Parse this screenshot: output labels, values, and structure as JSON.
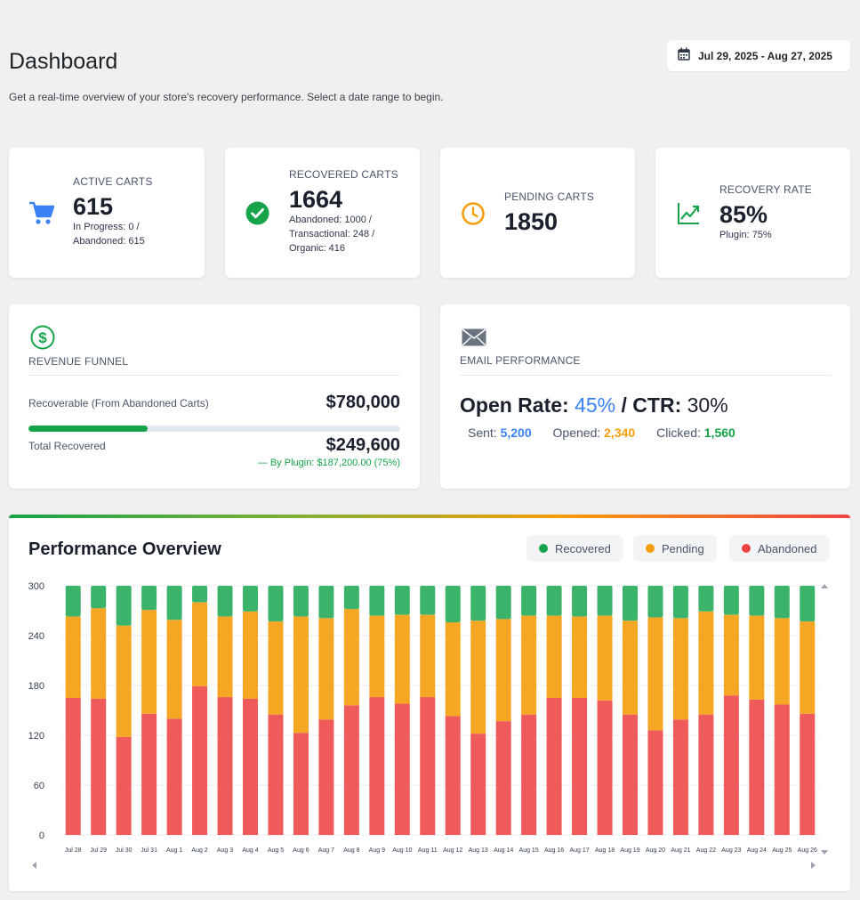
{
  "header": {
    "title": "Dashboard",
    "subtitle": "Get a real-time overview of your store's recovery performance. Select a date range to begin.",
    "date_range": "Jul 29, 2025 - Aug 27, 2025"
  },
  "stats": {
    "active": {
      "label": "ACTIVE CARTS",
      "value": "615",
      "sub1": "In Progress: 0 /",
      "sub2": "Abandoned: 615",
      "icon": "cart-icon",
      "color": "#3b82f6"
    },
    "recovered": {
      "label": "RECOVERED CARTS",
      "value": "1664",
      "sub1": "Abandoned: 1000 /",
      "sub2": "Transactional: 248 /",
      "sub3": "Organic: 416",
      "icon": "check-circle-icon",
      "color": "#16a34a"
    },
    "pending": {
      "label": "PENDING CARTS",
      "value": "1850",
      "icon": "clock-icon",
      "color": "#f59e0b"
    },
    "rate": {
      "label": "RECOVERY RATE",
      "value": "85%",
      "sub1": "Plugin: 75%",
      "icon": "trend-up-icon",
      "color": "#16a34a"
    }
  },
  "revenue": {
    "label": "REVENUE FUNNEL",
    "icon": "dollar-circle-icon",
    "recoverable_label": "Recoverable (From Abandoned Carts)",
    "recoverable_value": "$780,000",
    "recovered_label": "Total Recovered",
    "recovered_value": "$249,600",
    "recovered_fraction": 0.32,
    "plugin_note": "— By Plugin: $187,200.00 (75%)"
  },
  "email": {
    "label": "EMAIL PERFORMANCE",
    "icon": "envelope-icon",
    "open_rate_label": "Open Rate:",
    "open_rate_value": "45%",
    "separator": " / ",
    "ctr_label": "CTR:",
    "ctr_value": "30%",
    "sent_label": "Sent:",
    "sent_value": "5,200",
    "opened_label": "Opened:",
    "opened_value": "2,340",
    "clicked_label": "Clicked:",
    "clicked_value": "1,560",
    "colors": {
      "sent": "#3b82f6",
      "opened": "#f59e0b",
      "clicked": "#16a34a"
    }
  },
  "performance": {
    "title": "Performance Overview",
    "legend": [
      {
        "label": "Recovered",
        "color": "#16a34a"
      },
      {
        "label": "Pending",
        "color": "#f59e0b"
      },
      {
        "label": "Abandoned",
        "color": "#ef4444"
      }
    ]
  },
  "chart_data": {
    "type": "bar",
    "stacked": true,
    "categories": [
      "Jul 28",
      "Jul 29",
      "Jul 30",
      "Jul 31",
      "Aug 1",
      "Aug 2",
      "Aug 3",
      "Aug 4",
      "Aug 5",
      "Aug 6",
      "Aug 7",
      "Aug 8",
      "Aug 9",
      "Aug 10",
      "Aug 11",
      "Aug 12",
      "Aug 13",
      "Aug 14",
      "Aug 15",
      "Aug 16",
      "Aug 17",
      "Aug 18",
      "Aug 19",
      "Aug 20",
      "Aug 21",
      "Aug 22",
      "Aug 23",
      "Aug 24",
      "Aug 25",
      "Aug 26"
    ],
    "series": [
      {
        "name": "Abandoned",
        "color": "#ef5a5a",
        "values": [
          165,
          164,
          118,
          146,
          140,
          179,
          166,
          164,
          145,
          123,
          139,
          156,
          166,
          158,
          166,
          143,
          122,
          137,
          145,
          165,
          165,
          162,
          145,
          126,
          139,
          145,
          168,
          163,
          157,
          146
        ]
      },
      {
        "name": "Pending",
        "color": "#f5a623",
        "values": [
          98,
          109,
          134,
          125,
          119,
          101,
          97,
          105,
          112,
          140,
          122,
          116,
          98,
          107,
          99,
          113,
          136,
          123,
          119,
          99,
          98,
          102,
          113,
          136,
          122,
          124,
          97,
          101,
          104,
          111
        ]
      },
      {
        "name": "Recovered",
        "color": "#3cb36b",
        "values": [
          37,
          27,
          48,
          29,
          41,
          20,
          37,
          31,
          43,
          37,
          39,
          28,
          36,
          35,
          35,
          44,
          42,
          40,
          36,
          36,
          37,
          36,
          42,
          38,
          39,
          31,
          35,
          36,
          39,
          43
        ]
      }
    ],
    "ylim": [
      0,
      300
    ],
    "yticks": [
      0,
      60,
      120,
      180,
      240,
      300
    ],
    "grid": true,
    "legend_position": "top-right"
  }
}
